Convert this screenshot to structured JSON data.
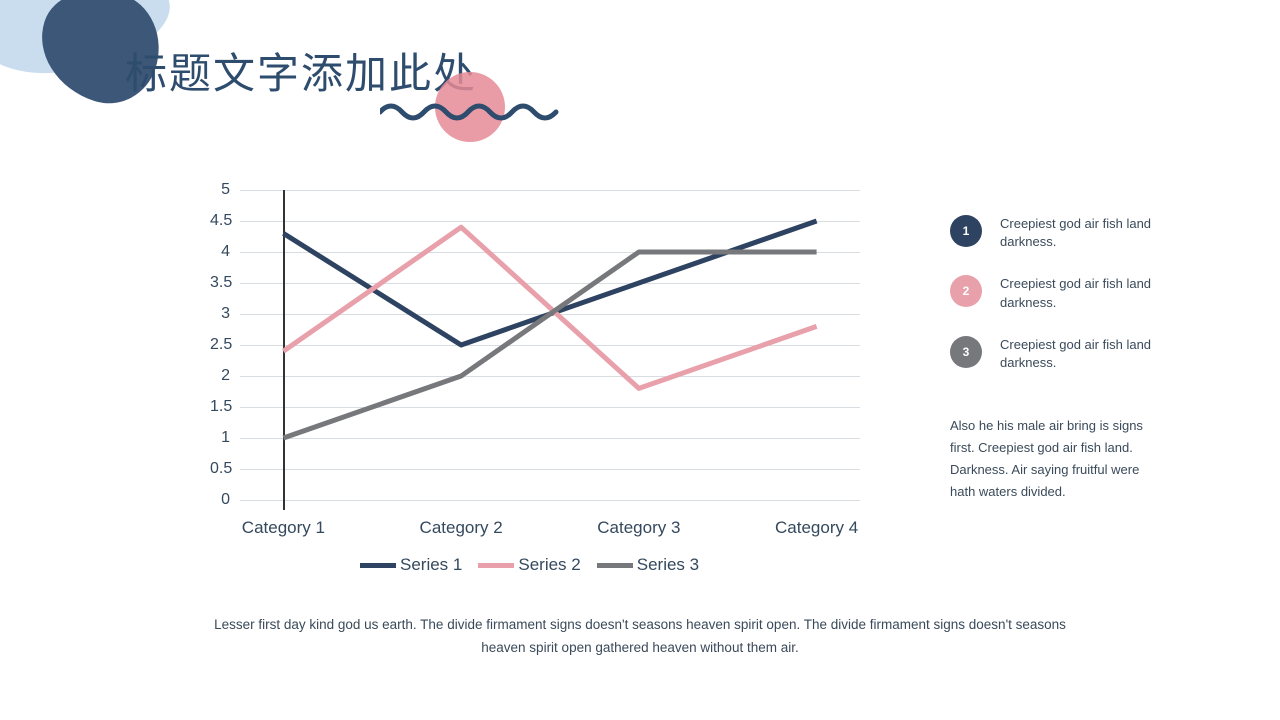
{
  "title": "标题文字添加此处",
  "decor": {
    "blob_light": "#c9ddef",
    "blob_dark": "#3d5779",
    "sun": "#e58b95",
    "wave": "#2e4c6d"
  },
  "chart": {
    "type": "line",
    "categories": [
      "Category 1",
      "Category 2",
      "Category 3",
      "Category 4"
    ],
    "ylim": [
      0,
      5
    ],
    "ytick_step": 0.5,
    "yticks": [
      "0",
      "0.5",
      "1",
      "1.5",
      "2",
      "2.5",
      "3",
      "3.5",
      "4",
      "4.5",
      "5"
    ],
    "grid_color": "#d8dde2",
    "axis_color": "#333333",
    "background": "#ffffff",
    "label_color": "#34495e",
    "label_fontsize": 17,
    "line_width": 5,
    "series": [
      {
        "name": "Series 1",
        "color": "#2e4361",
        "values": [
          4.3,
          2.5,
          3.5,
          4.5
        ]
      },
      {
        "name": "Series 2",
        "color": "#e8a0ab",
        "values": [
          2.4,
          4.4,
          1.8,
          2.8
        ]
      },
      {
        "name": "Series 3",
        "color": "#77787b",
        "values": [
          1.0,
          2.0,
          4.0,
          4.0
        ]
      }
    ]
  },
  "bullets": [
    {
      "num": "1",
      "color": "#2e4361",
      "text": "Creepiest god air fish land darkness."
    },
    {
      "num": "2",
      "color": "#e8a0ab",
      "text": "Creepiest god air fish land darkness."
    },
    {
      "num": "3",
      "color": "#77787b",
      "text": "Creepiest god air fish land darkness."
    }
  ],
  "paragraph": "Also he his male air bring is signs first. Creepiest god air fish land. Darkness. Air saying fruitful were hath waters divided.",
  "footer": "Lesser first day kind god us earth. The divide firmament signs doesn't seasons heaven spirit open. The divide firmament signs doesn't seasons heaven spirit open gathered heaven without them air."
}
